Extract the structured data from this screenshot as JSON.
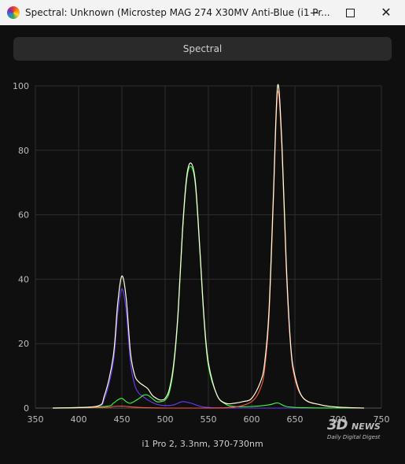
{
  "window": {
    "title": "Spectral: Unknown (Microstep MAG 274 X30MV Anti-Blue (i1 Pr...",
    "minimize_icon": "minimize-icon",
    "maximize_icon": "maximize-icon",
    "close_icon": "close-icon",
    "close_glyph": "✕"
  },
  "toolbar": {
    "tab_label": "Spectral"
  },
  "caption": "i1 Pro 2, 3.3nm, 370-730nm",
  "watermark": {
    "main": "3D",
    "news": "NEWS",
    "sub": "Daily Digital Digest"
  },
  "chart_data": {
    "type": "line",
    "xlim": [
      350,
      750
    ],
    "ylim": [
      0,
      100
    ],
    "xticks": [
      350,
      400,
      450,
      500,
      550,
      600,
      650,
      700,
      750
    ],
    "yticks": [
      0,
      20,
      40,
      60,
      80,
      100
    ],
    "grid": true,
    "colors": {
      "total": "#fffde0",
      "red": "#ff5a3a",
      "green": "#3aff3a",
      "blue": "#6a3aff",
      "grid": "#2e2e2e",
      "axis": "#bdbdbd"
    },
    "series": [
      {
        "key": "total",
        "x": [
          370,
          420,
          430,
          440,
          445,
          450,
          455,
          460,
          465,
          470,
          475,
          480,
          485,
          490,
          495,
          500,
          505,
          510,
          515,
          520,
          525,
          530,
          535,
          540,
          545,
          550,
          560,
          570,
          580,
          590,
          600,
          610,
          615,
          620,
          625,
          630,
          635,
          640,
          645,
          650,
          660,
          680,
          700,
          730
        ],
        "y": [
          0,
          0.5,
          4,
          16,
          32,
          41,
          34,
          17,
          10,
          8,
          7,
          6,
          4,
          3,
          2.5,
          3,
          6,
          14,
          30,
          55,
          72,
          76,
          70,
          50,
          28,
          14,
          4,
          1.5,
          1.5,
          2,
          3,
          8,
          14,
          30,
          65,
          100,
          82,
          45,
          20,
          10,
          3,
          1,
          0.3,
          0
        ]
      },
      {
        "key": "red",
        "x": [
          370,
          430,
          440,
          450,
          460,
          470,
          480,
          500,
          550,
          580,
          600,
          610,
          615,
          620,
          625,
          630,
          635,
          640,
          645,
          650,
          660,
          680,
          700,
          730
        ],
        "y": [
          0,
          0.2,
          0.5,
          0.6,
          0.4,
          0.2,
          0.1,
          0,
          0,
          0.3,
          2,
          6,
          12,
          28,
          63,
          98,
          80,
          43,
          19,
          9,
          3,
          1,
          0.3,
          0
        ]
      },
      {
        "key": "green",
        "x": [
          370,
          430,
          440,
          445,
          450,
          455,
          460,
          470,
          475,
          480,
          485,
          490,
          495,
          500,
          505,
          510,
          515,
          520,
          525,
          530,
          535,
          540,
          545,
          550,
          560,
          570,
          580,
          600,
          620,
          630,
          640,
          660,
          700,
          730
        ],
        "y": [
          0,
          0.5,
          1.5,
          2.5,
          3,
          2,
          1.5,
          3,
          4,
          4,
          3,
          2,
          2,
          2.5,
          5,
          13,
          29,
          54,
          71,
          75,
          69,
          49,
          27,
          13,
          4,
          1.2,
          0.5,
          0.5,
          1,
          1.6,
          0.5,
          0.1,
          0,
          0
        ]
      },
      {
        "key": "blue",
        "x": [
          370,
          420,
          430,
          440,
          445,
          450,
          455,
          460,
          465,
          470,
          475,
          480,
          490,
          500,
          510,
          520,
          530,
          540,
          550,
          580,
          730
        ],
        "y": [
          0,
          0.5,
          3,
          14,
          29,
          37,
          30,
          14,
          7,
          4.5,
          3.5,
          2.5,
          1.2,
          0.8,
          1,
          2,
          1.5,
          0.6,
          0.2,
          0,
          0
        ]
      }
    ]
  }
}
